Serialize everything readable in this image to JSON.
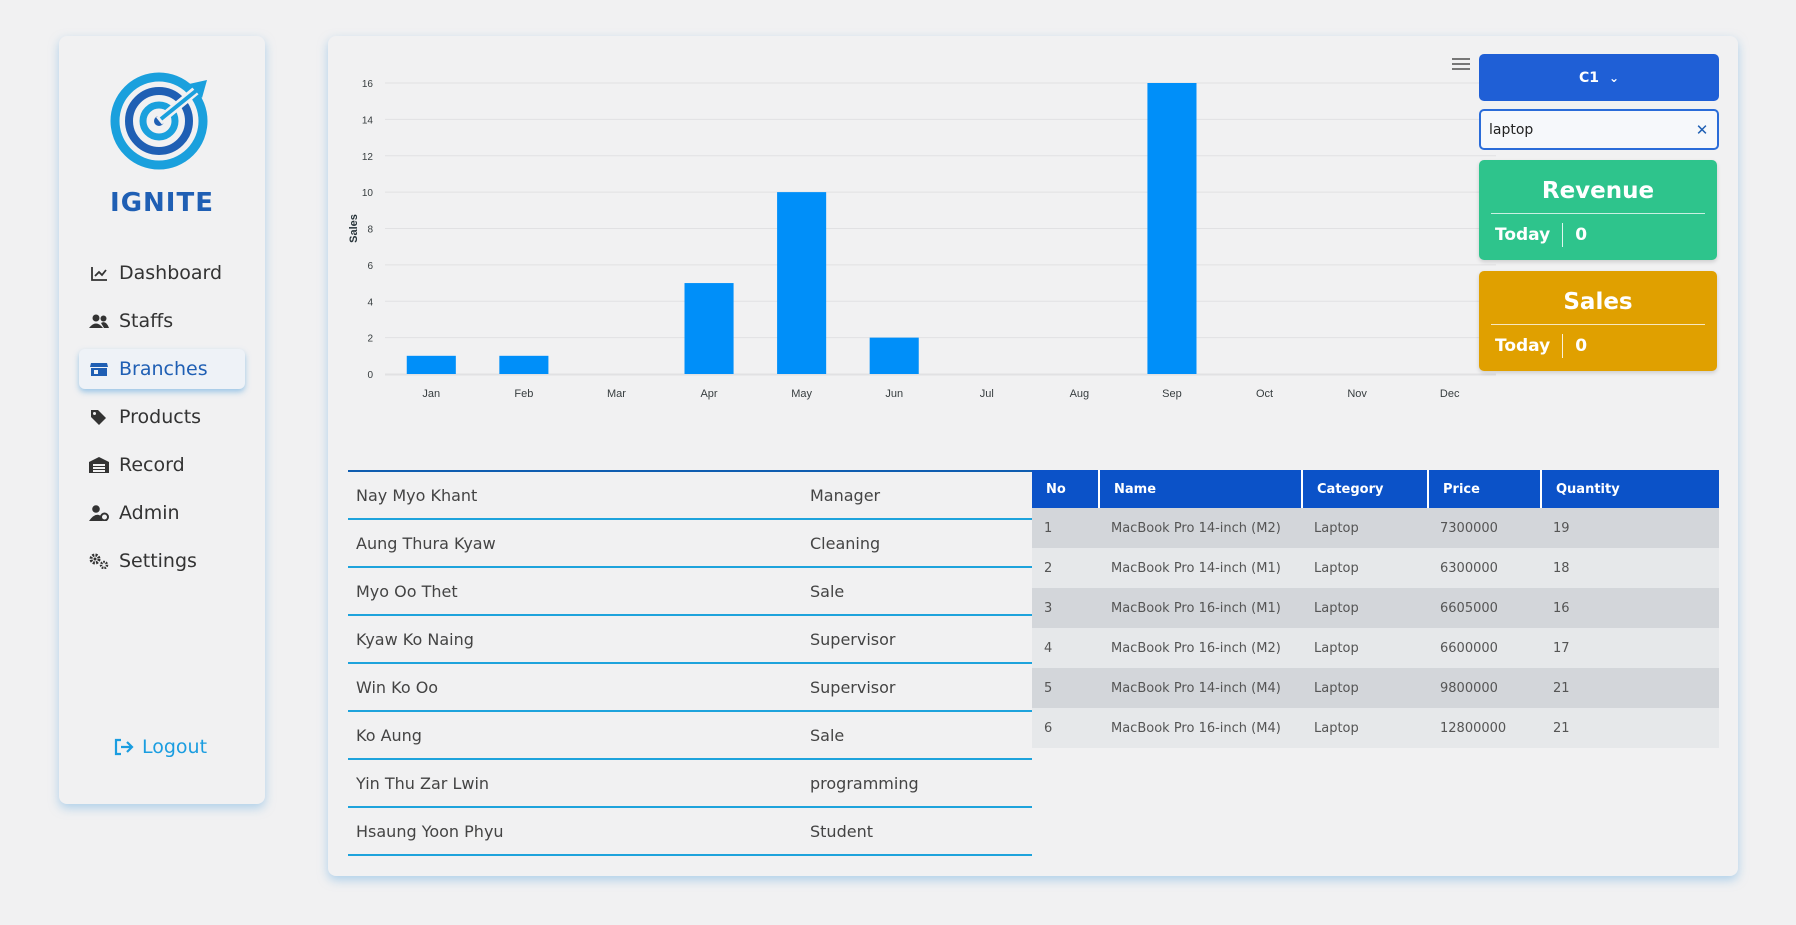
{
  "app": {
    "logo_text": "IGNITE"
  },
  "sidebar": {
    "items": [
      {
        "label": "Dashboard",
        "icon": "chart-line-icon"
      },
      {
        "label": "Staffs",
        "icon": "users-icon"
      },
      {
        "label": "Branches",
        "icon": "store-icon",
        "active": true
      },
      {
        "label": "Products",
        "icon": "tags-icon"
      },
      {
        "label": "Record",
        "icon": "warehouse-icon"
      },
      {
        "label": "Admin",
        "icon": "user-gear-icon"
      },
      {
        "label": "Settings",
        "icon": "gears-icon"
      }
    ],
    "logout_label": "Logout"
  },
  "branch_selector": {
    "label": "C1"
  },
  "search": {
    "value": "laptop"
  },
  "revenue_card": {
    "title": "Revenue",
    "period": "Today",
    "value": "0"
  },
  "sales_card": {
    "title": "Sales",
    "period": "Today",
    "value": "0"
  },
  "chart_data": {
    "type": "bar",
    "categories": [
      "Jan",
      "Feb",
      "Mar",
      "Apr",
      "May",
      "Jun",
      "Jul",
      "Aug",
      "Sep",
      "Oct",
      "Nov",
      "Dec"
    ],
    "values": [
      1,
      1,
      0,
      5,
      10,
      2,
      0,
      0,
      16,
      0,
      0,
      0
    ],
    "ylabel": "Sales",
    "xlabel": "",
    "ylim": [
      0,
      16
    ],
    "yticks": [
      0,
      2,
      4,
      6,
      8,
      10,
      12,
      14,
      16
    ],
    "grid": true,
    "colors": {
      "bar": "#008ff9"
    }
  },
  "staff": [
    {
      "name": "Nay Myo Khant",
      "role": "Manager"
    },
    {
      "name": "Aung Thura Kyaw",
      "role": "Cleaning"
    },
    {
      "name": "Myo Oo Thet",
      "role": "Sale"
    },
    {
      "name": "Kyaw Ko Naing",
      "role": "Supervisor"
    },
    {
      "name": "Win Ko Oo",
      "role": "Supervisor"
    },
    {
      "name": "Ko Aung",
      "role": "Sale"
    },
    {
      "name": "Yin Thu Zar Lwin",
      "role": "programming"
    },
    {
      "name": "Hsaung Yoon Phyu",
      "role": "Student"
    }
  ],
  "products": {
    "headers": [
      "No",
      "Name",
      "Category",
      "Price",
      "Quantity"
    ],
    "rows": [
      [
        "1",
        "MacBook Pro 14-inch (M2)",
        "Laptop",
        "7300000",
        "19"
      ],
      [
        "2",
        "MacBook Pro 14-inch (M1)",
        "Laptop",
        "6300000",
        "18"
      ],
      [
        "3",
        "MacBook Pro 16-inch (M1)",
        "Laptop",
        "6605000",
        "16"
      ],
      [
        "4",
        "MacBook Pro 16-inch (M2)",
        "Laptop",
        "6600000",
        "17"
      ],
      [
        "5",
        "MacBook Pro 14-inch (M4)",
        "Laptop",
        "9800000",
        "21"
      ],
      [
        "6",
        "MacBook Pro 16-inch (M4)",
        "Laptop",
        "12800000",
        "21"
      ]
    ]
  }
}
